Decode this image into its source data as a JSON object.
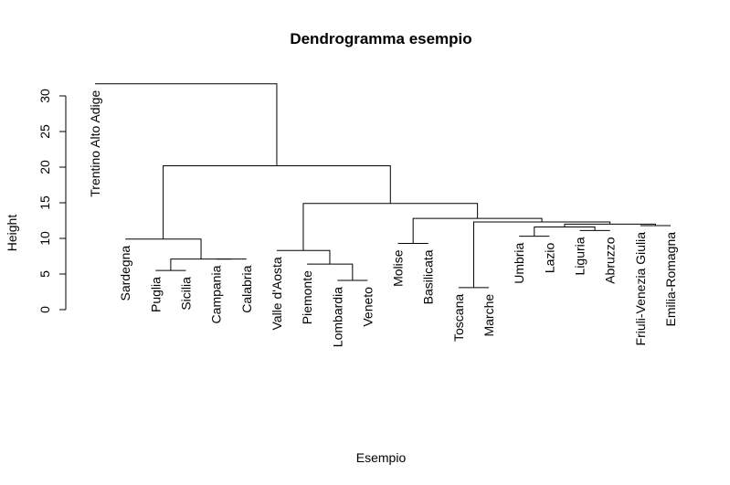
{
  "chart_data": {
    "type": "dendrogram",
    "title": "Dendrogramma esempio",
    "xlabel": "Esempio",
    "ylabel": "Height",
    "ylim": [
      0,
      32
    ],
    "yticks": [
      0,
      5,
      10,
      15,
      20,
      25,
      30
    ],
    "leaves": [
      "Trentino Alto Adige",
      "Sardegna",
      "Puglia",
      "Sicilia",
      "Campania",
      "Calabria",
      "Valle d'Aosta",
      "Piemonte",
      "Lombardia",
      "Veneto",
      "Molise",
      "Basilicata",
      "Toscana",
      "Marche",
      "Umbria",
      "Lazio",
      "Liguria",
      "Abruzzo",
      "Friuli-Venezia Giulia",
      "Emilia-Romagna"
    ],
    "leaf_heights": [
      31.7,
      9.9,
      5.5,
      5.5,
      7.1,
      7.1,
      8.3,
      6.4,
      4.1,
      4.1,
      9.3,
      9.3,
      3.1,
      3.1,
      10.3,
      10.3,
      11.1,
      11.1,
      11.8,
      11.8
    ],
    "merges": [
      {
        "a": "L:Sicilia",
        "b": "L:Puglia",
        "height": 5.5
      },
      {
        "a": "L:Campania",
        "b": "L:Calabria",
        "height": 7.1
      },
      {
        "a": "M:0",
        "b": "M:1",
        "height": 7.1
      },
      {
        "a": "L:Sardegna",
        "b": "M:2",
        "height": 9.9
      },
      {
        "a": "L:Lombardia",
        "b": "L:Veneto",
        "height": 4.1
      },
      {
        "a": "L:Piemonte",
        "b": "M:4",
        "height": 6.4
      },
      {
        "a": "L:Valle d'Aosta",
        "b": "M:5",
        "height": 8.3
      },
      {
        "a": "L:Molise",
        "b": "L:Basilicata",
        "height": 9.3
      },
      {
        "a": "L:Toscana",
        "b": "L:Marche",
        "height": 3.1
      },
      {
        "a": "L:Umbria",
        "b": "L:Lazio",
        "height": 10.3
      },
      {
        "a": "L:Liguria",
        "b": "L:Abruzzo",
        "height": 11.1
      },
      {
        "a": "M:9",
        "b": "M:10",
        "height": 11.6
      },
      {
        "a": "L:Friuli-Venezia Giulia",
        "b": "L:Emilia-Romagna",
        "height": 11.8
      },
      {
        "a": "M:11",
        "b": "M:12",
        "height": 12.0
      },
      {
        "a": "M:8",
        "b": "M:13",
        "height": 12.3
      },
      {
        "a": "M:7",
        "b": "M:14",
        "height": 12.8
      },
      {
        "a": "M:6",
        "b": "M:15",
        "height": 14.9
      },
      {
        "a": "M:3",
        "b": "M:16",
        "height": 20.2
      },
      {
        "a": "L:Trentino Alto Adige",
        "b": "M:17",
        "height": 31.7
      }
    ],
    "grid": false,
    "legend": "none"
  }
}
